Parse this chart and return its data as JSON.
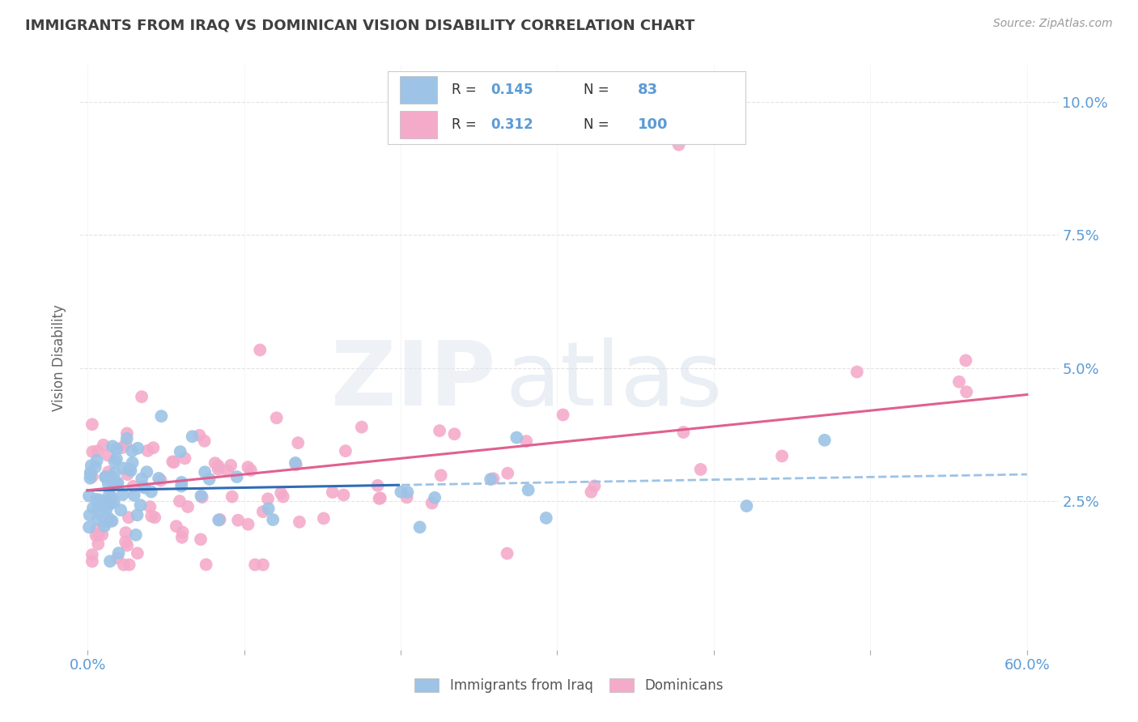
{
  "title": "IMMIGRANTS FROM IRAQ VS DOMINICAN VISION DISABILITY CORRELATION CHART",
  "source": "Source: ZipAtlas.com",
  "ylabel": "Vision Disability",
  "iraq_color": "#9DC3E6",
  "dominican_color": "#F4ABCA",
  "iraq_line_color": "#2F6CB5",
  "dominican_line_color": "#E06090",
  "iraq_dash_color": "#9DC3E6",
  "iraq_R": 0.145,
  "iraq_N": 83,
  "dominican_R": 0.312,
  "dominican_N": 100,
  "background_color": "#ffffff",
  "grid_color": "#dddddd",
  "title_color": "#404040",
  "axis_label_color": "#5b9bd5",
  "legend_R_color": "#5b9bd5",
  "legend_N_color": "#5b9bd5",
  "xlim": [
    -0.005,
    0.62
  ],
  "ylim": [
    -0.003,
    0.107
  ],
  "yticks": [
    0.025,
    0.05,
    0.075,
    0.1
  ],
  "yticklabels": [
    "2.5%",
    "5.0%",
    "7.5%",
    "10.0%"
  ],
  "xtick_positions": [
    0.0,
    0.1,
    0.2,
    0.3,
    0.4,
    0.5,
    0.6
  ],
  "xticklabels_show": [
    "0.0%",
    "",
    "",
    "",
    "",
    "",
    "60.0%"
  ]
}
